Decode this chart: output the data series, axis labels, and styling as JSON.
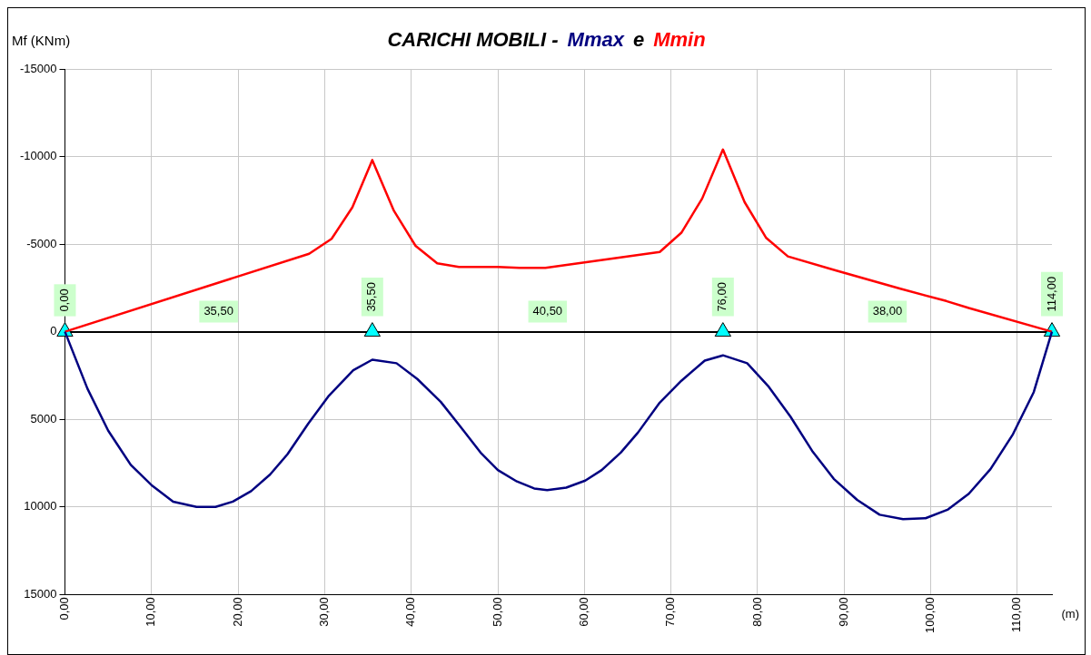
{
  "chart_data": {
    "type": "line",
    "title": "CARICHI MOBILI -",
    "ylabel": "Mf (KNm)",
    "xlabel": "(m)",
    "series": [
      {
        "name": "Mmax",
        "color": "#000080",
        "x": [
          0,
          2.6,
          5.0,
          7.6,
          10.1,
          12.5,
          15.2,
          17.4,
          19.4,
          21.5,
          23.7,
          25.7,
          28.1,
          30.5,
          33.3,
          35.5,
          38.3,
          40.7,
          43.4,
          45.8,
          48.0,
          50.0,
          52.2,
          54.2,
          55.7,
          57.9,
          60.1,
          62.0,
          64.2,
          66.2,
          68.7,
          71.2,
          73.9,
          76.0,
          78.8,
          81.3,
          83.8,
          86.3,
          88.8,
          91.5,
          94.1,
          96.8,
          99.4,
          102.0,
          104.4,
          106.9,
          109.5,
          111.9,
          114
        ],
        "values": [
          0,
          3250,
          5650,
          7600,
          8800,
          9700,
          10000,
          10000,
          9700,
          9100,
          8150,
          7000,
          5250,
          3650,
          2200,
          1600,
          1800,
          2700,
          4000,
          5500,
          6900,
          7900,
          8550,
          8950,
          9050,
          8900,
          8500,
          7900,
          6900,
          5750,
          4050,
          2800,
          1650,
          1350,
          1800,
          3150,
          4850,
          6800,
          8400,
          9600,
          10450,
          10700,
          10650,
          10150,
          9250,
          7850,
          5850,
          3450,
          0
        ]
      },
      {
        "name": "Mmin",
        "color": "#ff0000",
        "x": [
          0,
          28.2,
          30.8,
          33.2,
          35.5,
          38.0,
          40.5,
          43.0,
          45.5,
          50.0,
          52.5,
          55.5,
          68.7,
          71.2,
          73.6,
          76.0,
          78.5,
          81.0,
          83.5,
          89.0,
          96.5,
          101.8,
          104.4,
          114
        ],
        "values": [
          0,
          -4450,
          -5300,
          -7100,
          -9800,
          -6900,
          -4900,
          -3900,
          -3700,
          -3700,
          -3650,
          -3650,
          -4550,
          -5650,
          -7600,
          -10400,
          -7400,
          -5350,
          -4300,
          -3500,
          -2450,
          -1750,
          -1350,
          0
        ]
      },
      {
        "type": "scatter",
        "color": "#00ffff",
        "marker": "triangle",
        "x": [
          0,
          35.5,
          76,
          114
        ],
        "values": [
          0,
          0,
          0,
          0
        ]
      }
    ],
    "xlim": [
      0,
      114
    ],
    "xticks": [
      {
        "value": 0,
        "label": "0,00"
      },
      {
        "value": 10,
        "label": "10,00"
      },
      {
        "value": 20,
        "label": "20,00"
      },
      {
        "value": 30,
        "label": "30,00"
      },
      {
        "value": 40,
        "label": "40,00"
      },
      {
        "value": 50,
        "label": "50,00"
      },
      {
        "value": 60,
        "label": "60,00"
      },
      {
        "value": 70,
        "label": "70,00"
      },
      {
        "value": 80,
        "label": "80,00"
      },
      {
        "value": 90,
        "label": "90,00"
      },
      {
        "value": 100,
        "label": "100,00"
      },
      {
        "value": 110,
        "label": "110,00"
      }
    ],
    "ylim": [
      15000,
      -15000
    ],
    "yticks": [
      -15000,
      -10000,
      -5000,
      0,
      5000,
      10000,
      15000
    ],
    "grid": true,
    "marker": "none",
    "line_style": "solid",
    "legend": "top",
    "annotations": [
      {
        "text": "0,00",
        "x": 0
      },
      {
        "text": "35,50",
        "x": 17.75
      },
      {
        "text": "35,50",
        "x": 35.5
      },
      {
        "text": "40,50",
        "x": 55.75
      },
      {
        "text": "76,00",
        "x": 76
      },
      {
        "text": "38,00",
        "x": 95
      },
      {
        "text": "114,00",
        "x": 114,
        "y": 0
      },
      "e"
    ]
  }
}
